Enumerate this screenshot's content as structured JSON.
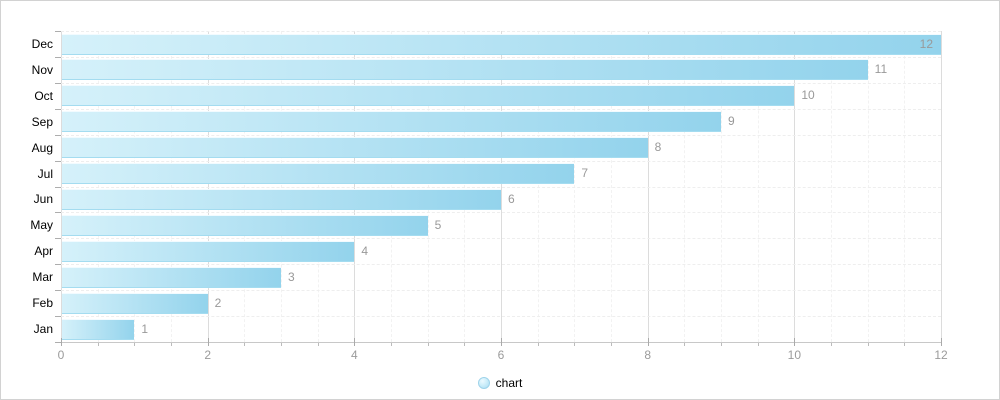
{
  "chart_data": {
    "type": "bar",
    "orientation": "horizontal",
    "title": "",
    "xlabel": "",
    "ylabel": "",
    "categories": [
      "Dec",
      "Nov",
      "Oct",
      "Sep",
      "Aug",
      "Jul",
      "Jun",
      "May",
      "Apr",
      "Mar",
      "Feb",
      "Jan"
    ],
    "values": [
      12,
      11,
      10,
      9,
      8,
      7,
      6,
      5,
      4,
      3,
      2,
      1
    ],
    "value_labels": [
      "12",
      "11",
      "10",
      "9",
      "8",
      "7",
      "6",
      "5",
      "4",
      "3",
      "2",
      "1"
    ],
    "xlim": [
      0,
      12
    ],
    "x_major_ticks": [
      0,
      2,
      4,
      6,
      8,
      10,
      12
    ],
    "x_major_tick_labels": [
      "0",
      "2",
      "4",
      "6",
      "8",
      "10",
      "12"
    ],
    "x_minor_step": 0.5,
    "grid": true,
    "legend": {
      "position": "bottom",
      "label": "chart"
    }
  },
  "colors": {
    "background": "#ffffff",
    "outer_border": "#d2d2d2",
    "bar_gradient_start": "#d5f1fa",
    "bar_gradient_end": "#93d3ec",
    "bar_border_top": "#f2fbff",
    "bar_border_bottom": "#a4dcf0",
    "grid_major": "#dcdcdc",
    "grid_minor": "#f2f2f2",
    "row_line": "#eeeeee",
    "axis_line": "#c8c8c8",
    "tick": "#aaaaaa",
    "value_label": "#999999",
    "category_label": "#000000",
    "legend_marker_fill": "#a9dcf2",
    "legend_marker_border": "#9ed3ea"
  }
}
